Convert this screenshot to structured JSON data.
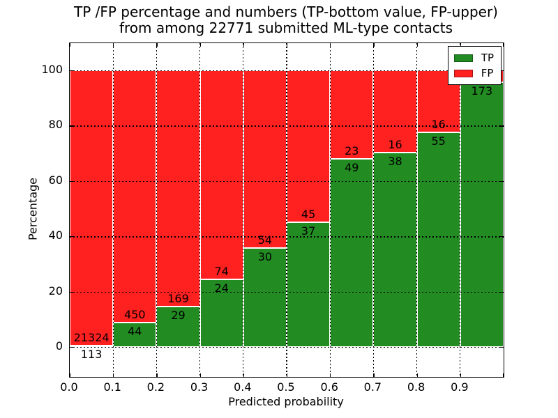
{
  "title": {
    "line1": "TP /FP percentage and numbers (TP-bottom value, FP-upper)",
    "line2": "from among 22771 submitted ML-type contacts"
  },
  "axes": {
    "xlabel": "Predicted probability",
    "ylabel": "Percentage",
    "x_tick_labels": [
      "0.0",
      "0.1",
      "0.2",
      "0.3",
      "0.4",
      "0.5",
      "0.6",
      "0.7",
      "0.8",
      "0.9"
    ],
    "y_ticks": [
      {
        "label": "0",
        "value": 0
      },
      {
        "label": "20",
        "value": 20
      },
      {
        "label": "40",
        "value": 40
      },
      {
        "label": "60",
        "value": 60
      },
      {
        "label": "80",
        "value": 80
      },
      {
        "label": "100",
        "value": 100
      }
    ],
    "xlim": [
      0.0,
      1.0
    ],
    "ylim": [
      -10.8,
      109.8
    ],
    "grid": true
  },
  "legend": {
    "position": "upper-right",
    "items": [
      {
        "label": "TP",
        "color": "#228b22"
      },
      {
        "label": "FP",
        "color": "#ff2020"
      }
    ]
  },
  "chart_data": {
    "type": "bar",
    "subtype": "stacked-percentage",
    "title": "TP /FP percentage and numbers (TP-bottom value, FP-upper) from among 22771 submitted ML-type contacts",
    "xlabel": "Predicted probability",
    "ylabel": "Percentage",
    "total_submitted": 22771,
    "colors": {
      "tp": "#228b22",
      "fp": "#ff2020"
    },
    "series_names": [
      "TP",
      "FP"
    ],
    "bins": [
      {
        "x_start": 0.0,
        "x_end": 0.1,
        "tp_count": 113,
        "fp_count": 21324,
        "tp_percent": 0.53,
        "tp_label": "113",
        "fp_label": "21324"
      },
      {
        "x_start": 0.1,
        "x_end": 0.2,
        "tp_count": 44,
        "fp_count": 450,
        "tp_percent": 8.91,
        "tp_label": "44",
        "fp_label": "450"
      },
      {
        "x_start": 0.2,
        "x_end": 0.3,
        "tp_count": 29,
        "fp_count": 169,
        "tp_percent": 14.65,
        "tp_label": "29",
        "fp_label": "169"
      },
      {
        "x_start": 0.3,
        "x_end": 0.4,
        "tp_count": 24,
        "fp_count": 74,
        "tp_percent": 24.49,
        "tp_label": "24",
        "fp_label": "74"
      },
      {
        "x_start": 0.4,
        "x_end": 0.5,
        "tp_count": 30,
        "fp_count": 54,
        "tp_percent": 35.71,
        "tp_label": "30",
        "fp_label": "54"
      },
      {
        "x_start": 0.5,
        "x_end": 0.6,
        "tp_count": 37,
        "fp_count": 45,
        "tp_percent": 45.12,
        "tp_label": "37",
        "fp_label": "45"
      },
      {
        "x_start": 0.6,
        "x_end": 0.7,
        "tp_count": 49,
        "fp_count": 23,
        "tp_percent": 68.06,
        "tp_label": "49",
        "fp_label": "23"
      },
      {
        "x_start": 0.7,
        "x_end": 0.8,
        "tp_count": 38,
        "fp_count": 16,
        "tp_percent": 70.37,
        "tp_label": "38",
        "fp_label": "16"
      },
      {
        "x_start": 0.8,
        "x_end": 0.9,
        "tp_count": 55,
        "fp_count": 16,
        "tp_percent": 77.46,
        "tp_label": "55",
        "fp_label": "16"
      },
      {
        "x_start": 0.9,
        "x_end": 1.0,
        "tp_count": 173,
        "fp_count": null,
        "tp_percent": 95.58,
        "tp_label": "173",
        "fp_label": ""
      }
    ]
  }
}
